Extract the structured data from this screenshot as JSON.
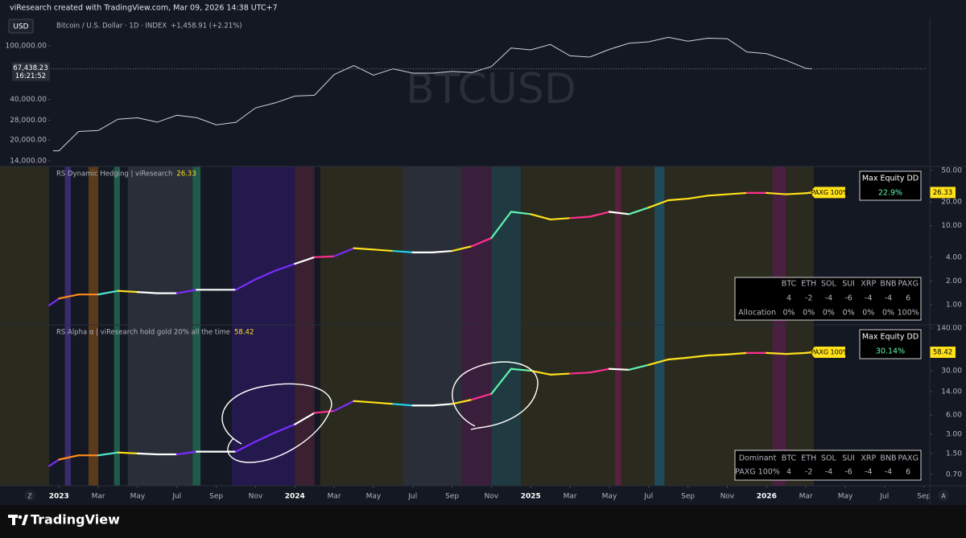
{
  "header": {
    "attribution": "viResearch created with TradingView.com, Mar 09, 2026 14:38 UTC+7"
  },
  "footer": {
    "brand": "TradingView"
  },
  "axis_buttons": [
    "Z",
    "A"
  ],
  "chart_data": [
    {
      "type": "line",
      "currency": "USD",
      "title": "Bitcoin / U.S. Dollar · 1D · INDEX",
      "change": "+1,458.91 (+2.21%)",
      "watermark": "BTCUSD",
      "log_scale": true,
      "xlim": [
        -3.0,
        44.3
      ],
      "ylim": [
        12700,
        161900
      ],
      "yticks": [
        {
          "value": 100000,
          "label": "100,000.00"
        },
        {
          "value": 40000,
          "label": "40,000.00"
        },
        {
          "value": 28000,
          "label": "28,000.00"
        },
        {
          "value": 20000,
          "label": "20,000.00"
        },
        {
          "value": 14000,
          "label": "14,000.00"
        }
      ],
      "last_price": {
        "value": 67438.23,
        "label": "67,438.23"
      },
      "countdown": "16:21:52",
      "series": [
        {
          "color": "#d1d4dc",
          "x": [
            -0.3,
            0,
            1,
            2,
            3,
            4,
            5,
            6,
            7,
            8,
            9,
            10,
            11,
            12,
            13,
            14,
            15,
            16,
            17,
            18,
            19,
            20,
            21,
            22,
            23,
            24,
            25,
            26,
            27,
            28,
            29,
            30,
            31,
            32,
            33,
            34,
            35,
            36,
            37,
            38,
            38.3
          ],
          "values": [
            16600,
            16600,
            23100,
            23500,
            28500,
            29200,
            27100,
            30500,
            29300,
            25900,
            27000,
            34600,
            37700,
            42300,
            43000,
            61200,
            71300,
            60600,
            67500,
            62700,
            62700,
            64600,
            63300,
            70200,
            96400,
            93400,
            102400,
            84300,
            82500,
            94200,
            104600,
            107100,
            115700,
            108300,
            114000,
            113000,
            90000,
            87500,
            78000,
            68000,
            67438.23
          ]
        }
      ]
    },
    {
      "type": "line",
      "title": "RS Dynamic Hedging | viResearch",
      "log_scale": true,
      "xlim": [
        -3.0,
        44.3
      ],
      "ylim": [
        0.557,
        56.2
      ],
      "yticks": [
        {
          "value": 50,
          "label": "50.00"
        },
        {
          "value": 20,
          "label": "20.00"
        },
        {
          "value": 10,
          "label": "10.00"
        },
        {
          "value": 4,
          "label": "4.00"
        },
        {
          "value": 2,
          "label": "2.00"
        },
        {
          "value": 1,
          "label": "1.00"
        }
      ],
      "tag": "PAXG 100%",
      "max_dd": {
        "label": "Max Equity DD",
        "value": "22.9%"
      },
      "table": {
        "columns": [
          "BTC",
          "ETH",
          "SOL",
          "SUI",
          "XRP",
          "BNB",
          "PAXG"
        ],
        "column_colors": [
          "#ff8c1a",
          "#4de8d0",
          "#7b2cff",
          "#ff2f8f",
          "#5ef5b0",
          "#b8860b",
          "#ffe11a"
        ],
        "scores": [
          4,
          -2,
          -4,
          -6,
          -4,
          -4,
          6
        ],
        "allocation_label": "Allocation",
        "allocation": [
          "0%",
          "0%",
          "0%",
          "0%",
          "0%",
          "0%",
          "100%"
        ]
      },
      "bands": [
        {
          "start": -3,
          "end": -0.5,
          "color": "#2b2a1e"
        },
        {
          "start": 0.3,
          "end": 0.6,
          "color": "#3a2a6e"
        },
        {
          "start": 1.5,
          "end": 2.0,
          "color": "#5a3a1a"
        },
        {
          "start": 2.8,
          "end": 3.1,
          "color": "#1f5a4a"
        },
        {
          "start": 3.5,
          "end": 6.8,
          "color": "#2a2e39"
        },
        {
          "start": 6.8,
          "end": 7.2,
          "color": "#1f5a4a"
        },
        {
          "start": 8.8,
          "end": 12.0,
          "color": "#24194d"
        },
        {
          "start": 12.0,
          "end": 13.0,
          "color": "#3a2030"
        },
        {
          "start": 13.3,
          "end": 17.5,
          "color": "#2b2a1e"
        },
        {
          "start": 17.5,
          "end": 20.5,
          "color": "#2a2e39"
        },
        {
          "start": 20.5,
          "end": 22.0,
          "color": "#3a1f3d"
        },
        {
          "start": 22.0,
          "end": 23.5,
          "color": "#1f3a40"
        },
        {
          "start": 23.5,
          "end": 36.5,
          "color": "#2b2a1e"
        },
        {
          "start": 28.3,
          "end": 28.6,
          "color": "#5a2040"
        },
        {
          "start": 30.3,
          "end": 30.8,
          "color": "#1f4a5a"
        },
        {
          "start": 36.3,
          "end": 37.0,
          "color": "#4a2040"
        },
        {
          "start": 37.0,
          "end": 38.4,
          "color": "#2b2a1e"
        }
      ],
      "series": [
        {
          "x": [
            -0.5,
            0,
            1,
            2,
            3,
            4,
            5,
            6,
            7,
            8,
            9,
            10,
            11,
            12,
            13,
            14,
            15,
            16,
            17,
            18,
            19,
            20,
            21,
            22,
            23,
            24,
            25,
            26,
            27,
            28,
            29,
            30,
            31,
            32,
            33,
            34,
            35,
            36,
            37,
            38,
            38.3
          ],
          "values": [
            0.98,
            1.2,
            1.35,
            1.35,
            1.5,
            1.45,
            1.4,
            1.4,
            1.55,
            1.55,
            1.55,
            2.1,
            2.7,
            3.3,
            4.0,
            4.1,
            5.2,
            5.0,
            4.8,
            4.6,
            4.6,
            4.8,
            5.5,
            7.0,
            15,
            14,
            12,
            12.5,
            13,
            15,
            14,
            17,
            21,
            22,
            24,
            25,
            26,
            26,
            25,
            25.8,
            26.33
          ],
          "colors": [
            "#7b2cff",
            "#7b2cff",
            "#ff8c1a",
            "#ff8c1a",
            "#4de8d0",
            "#ffe11a",
            "#ffffff",
            "#ffffff",
            "#7b2cff",
            "#ffffff",
            "#ffffff",
            "#7b2cff",
            "#7b2cff",
            "#7b2cff",
            "#ffffff",
            "#ff2f8f",
            "#7b2cff",
            "#ffe11a",
            "#ffe11a",
            "#22d3ee",
            "#ffffff",
            "#ffffff",
            "#ffe11a",
            "#ff2f8f",
            "#5ef5b0",
            "#5ef5b0",
            "#ffe11a",
            "#ffe11a",
            "#ff2f8f",
            "#ff2f8f",
            "#ffffff",
            "#5ef5b0",
            "#ffe11a",
            "#ffe11a",
            "#ffe11a",
            "#ffe11a",
            "#ffe11a",
            "#ff2f8f",
            "#ffe11a",
            "#ffe11a",
            "#ffe11a"
          ]
        }
      ]
    },
    {
      "type": "line",
      "title": "RS Alpha α | viResearch hold gold 20% all the time",
      "log_scale": true,
      "xlim": [
        -3.0,
        44.3
      ],
      "ylim": [
        0.466,
        157.3
      ],
      "yticks": [
        {
          "value": 140,
          "label": "140.00"
        },
        {
          "value": 30,
          "label": "30.00"
        },
        {
          "value": 14,
          "label": "14.00"
        },
        {
          "value": 6,
          "label": "6.00"
        },
        {
          "value": 3,
          "label": "3.00"
        },
        {
          "value": 1.5,
          "label": "1.50"
        },
        {
          "value": 0.7,
          "label": "0.70"
        }
      ],
      "xticks": [
        {
          "value": 0,
          "label": "2023"
        },
        {
          "value": 2,
          "label": "Mar"
        },
        {
          "value": 4,
          "label": "May"
        },
        {
          "value": 6,
          "label": "Jul"
        },
        {
          "value": 8,
          "label": "Sep"
        },
        {
          "value": 10,
          "label": "Nov"
        },
        {
          "value": 12,
          "label": "2024"
        },
        {
          "value": 14,
          "label": "Mar"
        },
        {
          "value": 16,
          "label": "May"
        },
        {
          "value": 18,
          "label": "Jul"
        },
        {
          "value": 20,
          "label": "Sep"
        },
        {
          "value": 22,
          "label": "Nov"
        },
        {
          "value": 24,
          "label": "2025"
        },
        {
          "value": 26,
          "label": "Mar"
        },
        {
          "value": 28,
          "label": "May"
        },
        {
          "value": 30,
          "label": "Jul"
        },
        {
          "value": 32,
          "label": "Sep"
        },
        {
          "value": 34,
          "label": "Nov"
        },
        {
          "value": 36,
          "label": "2026"
        },
        {
          "value": 38,
          "label": "Mar"
        },
        {
          "value": 40,
          "label": "May"
        },
        {
          "value": 42,
          "label": "Jul"
        },
        {
          "value": 44,
          "label": "Sep"
        }
      ],
      "tag": "PAXG 100%",
      "max_dd": {
        "label": "Max Equity DD",
        "value": "30.14%"
      },
      "table": {
        "columns": [
          "BTC",
          "ETH",
          "SOL",
          "SUI",
          "XRP",
          "BNB",
          "PAXG"
        ],
        "column_colors": [
          "#ff8c1a",
          "#4de8d0",
          "#7b2cff",
          "#ff2f8f",
          "#5ef5b0",
          "#b8860b",
          "#ffe11a"
        ],
        "dominant_label": "Dominant",
        "dominant": "PAXG 100%",
        "scores": [
          4,
          -2,
          -4,
          -6,
          -4,
          -4,
          6
        ]
      },
      "bands": [
        {
          "start": -3,
          "end": -0.5,
          "color": "#2b2a1e"
        },
        {
          "start": 0.3,
          "end": 0.6,
          "color": "#3a2a6e"
        },
        {
          "start": 1.5,
          "end": 2.0,
          "color": "#5a3a1a"
        },
        {
          "start": 2.8,
          "end": 3.1,
          "color": "#1f5a4a"
        },
        {
          "start": 3.5,
          "end": 6.8,
          "color": "#2a2e39"
        },
        {
          "start": 6.8,
          "end": 7.2,
          "color": "#1f5a4a"
        },
        {
          "start": 8.8,
          "end": 12.0,
          "color": "#24194d"
        },
        {
          "start": 12.0,
          "end": 13.0,
          "color": "#3a2030"
        },
        {
          "start": 13.3,
          "end": 17.5,
          "color": "#2b2a1e"
        },
        {
          "start": 17.5,
          "end": 20.5,
          "color": "#2a2e39"
        },
        {
          "start": 20.5,
          "end": 22.0,
          "color": "#3a1f3d"
        },
        {
          "start": 22.0,
          "end": 23.5,
          "color": "#1f3a40"
        },
        {
          "start": 23.5,
          "end": 36.5,
          "color": "#2b2a1e"
        },
        {
          "start": 28.3,
          "end": 28.6,
          "color": "#5a2040"
        },
        {
          "start": 30.3,
          "end": 30.8,
          "color": "#1f4a5a"
        },
        {
          "start": 36.3,
          "end": 37.0,
          "color": "#4a2040"
        },
        {
          "start": 37.0,
          "end": 38.4,
          "color": "#2b2a1e"
        }
      ],
      "series": [
        {
          "x": [
            -0.5,
            0,
            1,
            2,
            3,
            4,
            5,
            6,
            7,
            8,
            9,
            10,
            11,
            12,
            13,
            14,
            15,
            16,
            17,
            18,
            19,
            20,
            21,
            22,
            23,
            24,
            25,
            26,
            27,
            28,
            29,
            30,
            31,
            32,
            33,
            34,
            35,
            36,
            37,
            38,
            38.3
          ],
          "values": [
            0.95,
            1.2,
            1.4,
            1.4,
            1.55,
            1.5,
            1.45,
            1.45,
            1.6,
            1.6,
            1.6,
            2.3,
            3.2,
            4.3,
            6.5,
            7.0,
            10,
            9.5,
            9,
            8.5,
            8.5,
            9,
            10.5,
            13,
            32,
            30,
            26,
            27,
            28,
            32,
            31,
            37,
            45,
            48,
            52,
            54,
            57,
            57,
            55,
            57,
            58.42
          ],
          "colors": [
            "#7b2cff",
            "#7b2cff",
            "#ff8c1a",
            "#ff8c1a",
            "#4de8d0",
            "#ffe11a",
            "#ffffff",
            "#ffffff",
            "#7b2cff",
            "#ffffff",
            "#ffffff",
            "#7b2cff",
            "#7b2cff",
            "#7b2cff",
            "#ffffff",
            "#ff2f8f",
            "#7b2cff",
            "#ffe11a",
            "#ffe11a",
            "#22d3ee",
            "#ffffff",
            "#ffffff",
            "#ffe11a",
            "#ff2f8f",
            "#5ef5b0",
            "#5ef5b0",
            "#ffe11a",
            "#ffe11a",
            "#ff2f8f",
            "#ff2f8f",
            "#ffffff",
            "#5ef5b0",
            "#ffe11a",
            "#ffe11a",
            "#ffe11a",
            "#ffe11a",
            "#ffe11a",
            "#ff2f8f",
            "#ffe11a",
            "#ffe11a",
            "#ffe11a"
          ]
        }
      ]
    }
  ]
}
